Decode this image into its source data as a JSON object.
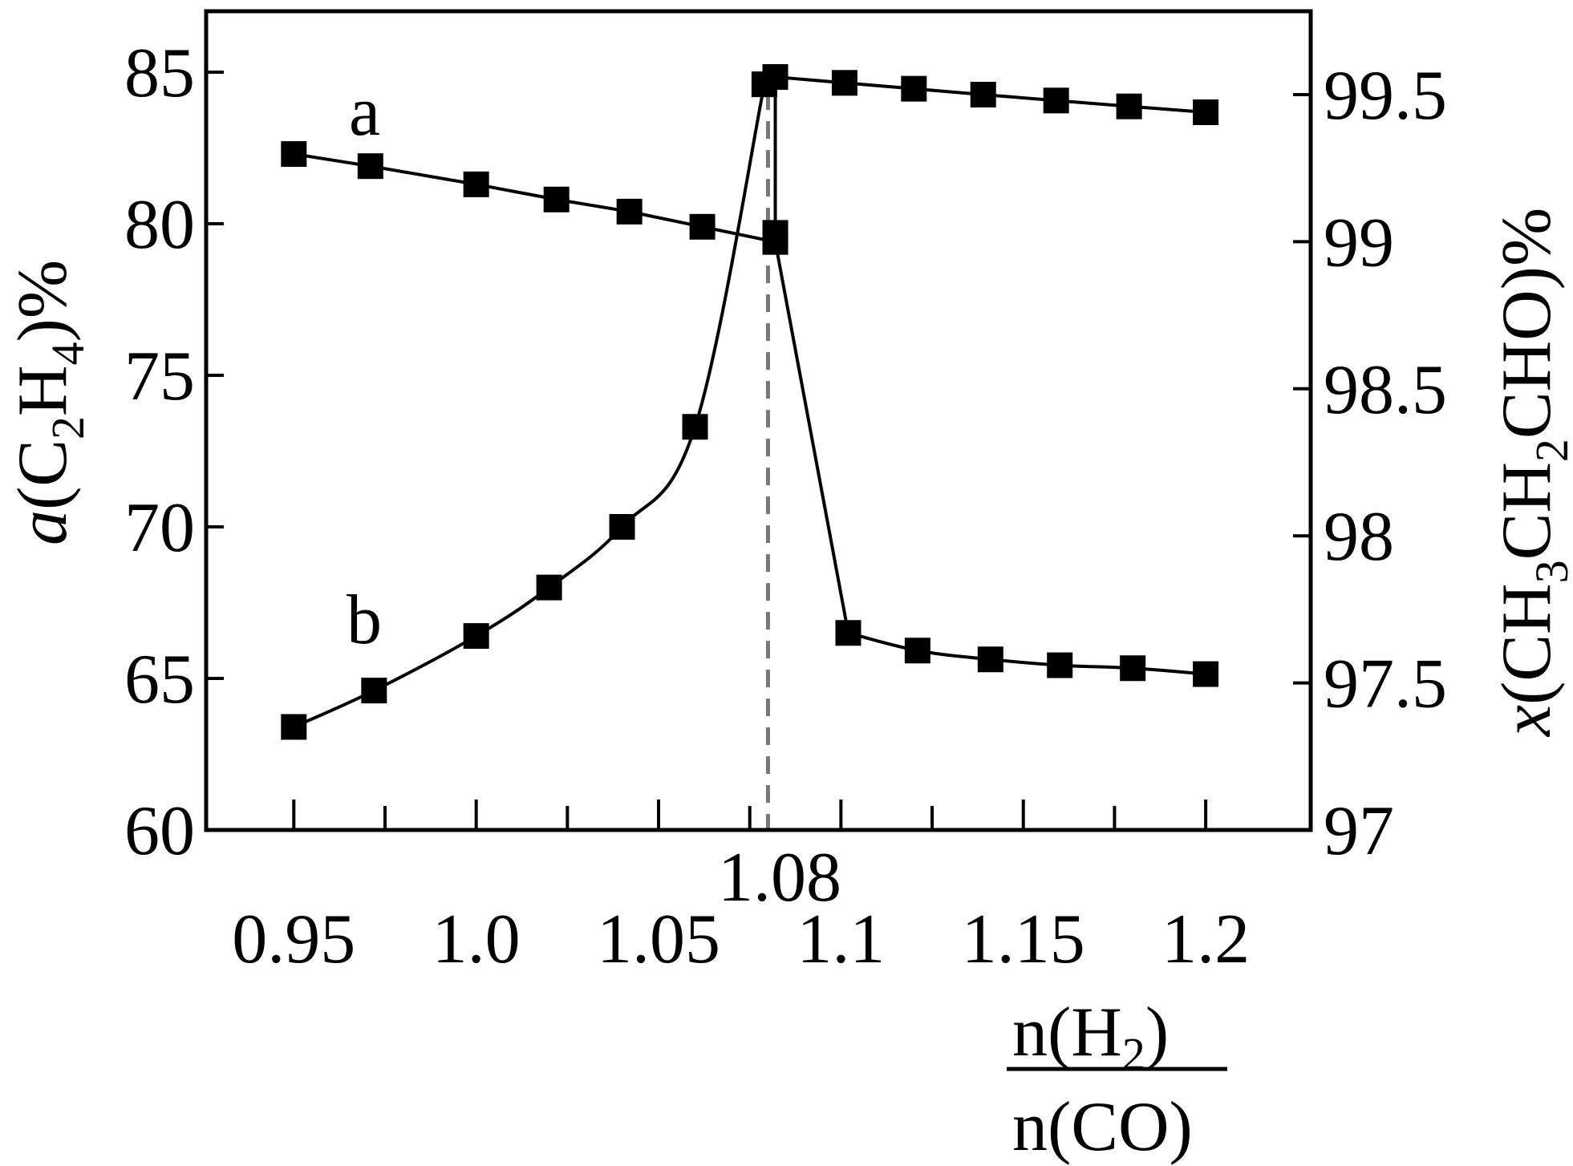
{
  "chart_data": {
    "type": "line",
    "x_ticks": [
      "0.95",
      "1.0",
      "1.05",
      "1.1",
      "1.15",
      "1.2"
    ],
    "x_tick_values": [
      0.95,
      1.0,
      1.05,
      1.1,
      1.15,
      1.2
    ],
    "x_minor_ticks": [
      0.975,
      1.025,
      1.075,
      1.125,
      1.175
    ],
    "xlim": [
      0.9375,
      1.2375
    ],
    "x_marker": {
      "value": 1.08,
      "label": "1.08"
    },
    "xlabel": {
      "numerator": "n(H",
      "numerator_sub": "2",
      "numerator_close": ")",
      "denominator": "n(CO)"
    },
    "y_left": {
      "ticks": [
        "60",
        "65",
        "70",
        "75",
        "80",
        "85"
      ],
      "tick_values": [
        60,
        65,
        70,
        75,
        80,
        85
      ],
      "lim": [
        60,
        87
      ],
      "label": {
        "italic": "a",
        "text": "(C",
        "sub1": "2",
        "mid": "H",
        "sub2": "4",
        "end": ")%"
      }
    },
    "y_right": {
      "ticks": [
        "97",
        "97.5",
        "98",
        "98.5",
        "99",
        "99.5"
      ],
      "tick_values": [
        97,
        97.5,
        98,
        98.5,
        99,
        99.5
      ],
      "lim": [
        97,
        99.7
      ],
      "label": {
        "italic": "x",
        "text": "(CH",
        "sub1": "3",
        "mid": "CH",
        "sub2": "2",
        "end": "CHO)%"
      }
    },
    "series": [
      {
        "name": "a",
        "axis": "left",
        "x": [
          0.95,
          0.971,
          1.0,
          1.022,
          1.042,
          1.062,
          1.082
        ],
        "y": [
          82.3,
          81.9,
          81.3,
          80.8,
          80.4,
          79.9,
          79.4
        ]
      },
      {
        "name": "a",
        "axis": "right",
        "x": [
          1.082,
          1.101,
          1.12,
          1.139,
          1.159,
          1.179,
          1.2
        ],
        "y": [
          99.56,
          99.54,
          99.52,
          99.5,
          99.48,
          99.46,
          99.44
        ]
      },
      {
        "name": "b",
        "axis": "left",
        "x": [
          0.95,
          0.972,
          1.0,
          1.02,
          1.04,
          1.06,
          1.079
        ],
        "y": [
          63.4,
          64.6,
          66.4,
          68.0,
          70.0,
          73.3,
          84.6
        ]
      },
      {
        "name": "b",
        "axis": "right",
        "x": [
          1.082,
          1.102,
          1.121,
          1.141,
          1.16,
          1.18,
          1.2
        ],
        "y": [
          99.03,
          97.67,
          97.61,
          97.58,
          97.56,
          97.55,
          97.53
        ]
      }
    ],
    "series_labels": [
      "a",
      "b"
    ]
  }
}
